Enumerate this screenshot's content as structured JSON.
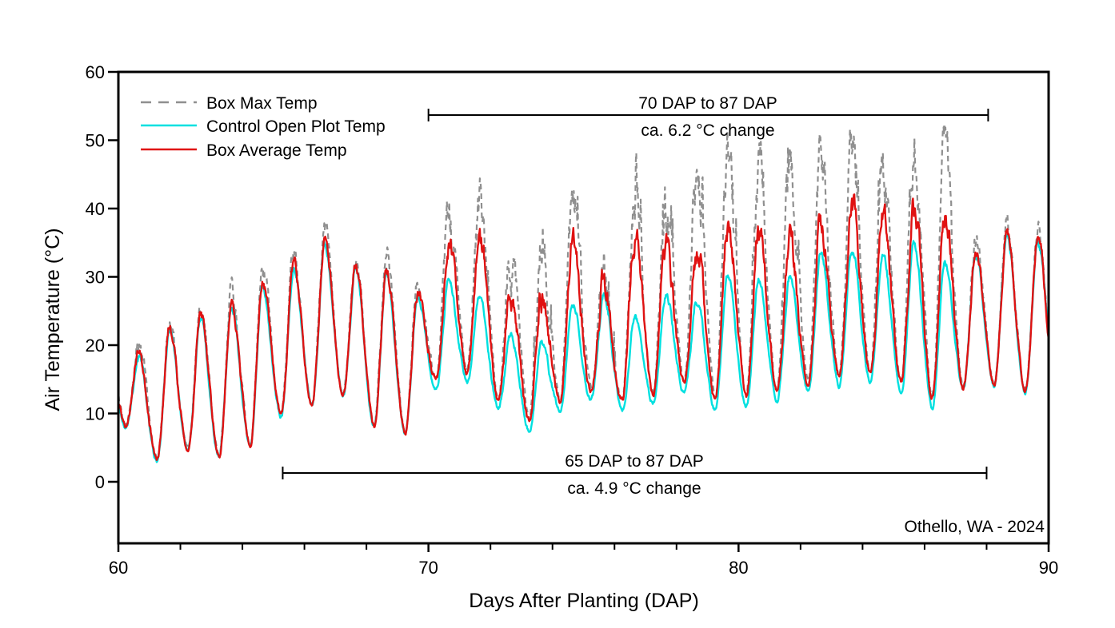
{
  "figure": {
    "site_label": "Othello, WA - 2024"
  },
  "axes": {
    "x": {
      "label": "Days After Planting (DAP)",
      "ticks": [
        60,
        70,
        80,
        90
      ],
      "minor_step": 2,
      "range": [
        60,
        90
      ]
    },
    "y": {
      "label": "Air Temperature (°C)",
      "ticks": [
        0,
        10,
        20,
        30,
        40,
        50,
        60
      ],
      "range": [
        -9,
        60
      ]
    }
  },
  "legend": {
    "items": [
      {
        "label": "Box Max Temp",
        "color": "#8f8f8f",
        "dashed": true
      },
      {
        "label": "Control Open Plot Temp",
        "color": "#00e0e0",
        "dashed": false
      },
      {
        "label": "Box Average Temp",
        "color": "#e01212",
        "dashed": false
      }
    ]
  },
  "annotations": {
    "top_bracket": {
      "line1": "70 DAP to 87 DAP",
      "line2": "ca. 6.2 °C change",
      "start_dap": 70.0,
      "end_dap": 88.05
    },
    "bottom_bracket": {
      "line1": "65 DAP to 87 DAP",
      "line2": "ca. 4.9 °C change",
      "start_dap": 65.3,
      "end_dap": 88.0
    }
  },
  "chart_data": {
    "type": "line",
    "title": "",
    "xlabel": "Days After Planting (DAP)",
    "ylabel": "Air Temperature (°C)",
    "xlim": [
      60,
      90
    ],
    "ylim": [
      -9,
      60
    ],
    "xticks": [
      60,
      70,
      80,
      90
    ],
    "yticks": [
      0,
      10,
      20,
      30,
      40,
      50,
      60
    ],
    "grid": false,
    "legend_position": "upper-left-inside",
    "series_names": [
      "Box Max Temp",
      "Control Open Plot Temp",
      "Box Average Temp"
    ],
    "resolution": "sub-daily diurnal cycles, one min/max pair per day read from plot",
    "daily": {
      "day": [
        60,
        61,
        62,
        63,
        64,
        65,
        66,
        67,
        68,
        69,
        70,
        71,
        72,
        73,
        74,
        75,
        76,
        77,
        78,
        79,
        80,
        81,
        82,
        83,
        84,
        85,
        86,
        87,
        88,
        89
      ],
      "control_min": [
        8,
        3,
        4.5,
        3.5,
        5,
        9.7,
        11,
        12.5,
        8,
        7,
        13.5,
        14.5,
        10.5,
        7.5,
        10.5,
        12,
        10.5,
        11.5,
        13,
        10.5,
        11,
        12,
        13,
        14,
        14.5,
        13,
        11,
        13.5,
        14,
        13
      ],
      "control_max": [
        18.5,
        22,
        24,
        25.5,
        28.5,
        31,
        34.5,
        31,
        30.5,
        27,
        29.5,
        27.5,
        21.5,
        20.5,
        26,
        27.5,
        24,
        27.5,
        26.5,
        30,
        29.5,
        30,
        33,
        34,
        33,
        35,
        32.5,
        33,
        36,
        35
      ],
      "box_avg_max": [
        19,
        22.5,
        24.5,
        26,
        29,
        31.5,
        35,
        31.5,
        31,
        27.5,
        34.5,
        36,
        28.5,
        27.5,
        35,
        28.5,
        35,
        34.5,
        33.5,
        37.5,
        37,
        35.5,
        38,
        40,
        38.5,
        40.5,
        40,
        33.5,
        36.5,
        35.5
      ],
      "box_max_max": [
        20,
        23.5,
        26,
        27.5,
        30.5,
        33.5,
        36.5,
        33,
        32.5,
        29,
        40,
        41,
        34.5,
        36,
        41,
        30.5,
        40.5,
        40,
        45,
        46,
        44.5,
        46.5,
        47.5,
        50,
        44.5,
        49,
        47,
        35.5,
        37.5,
        36.5
      ]
    },
    "separation_window_dap": [
      70,
      87
    ],
    "notes_on_screen": [
      "70 DAP to 87 DAP ca. 6.2 °C change",
      "65 DAP to 87 DAP ca. 4.9 °C change",
      "Othello, WA - 2024"
    ]
  }
}
